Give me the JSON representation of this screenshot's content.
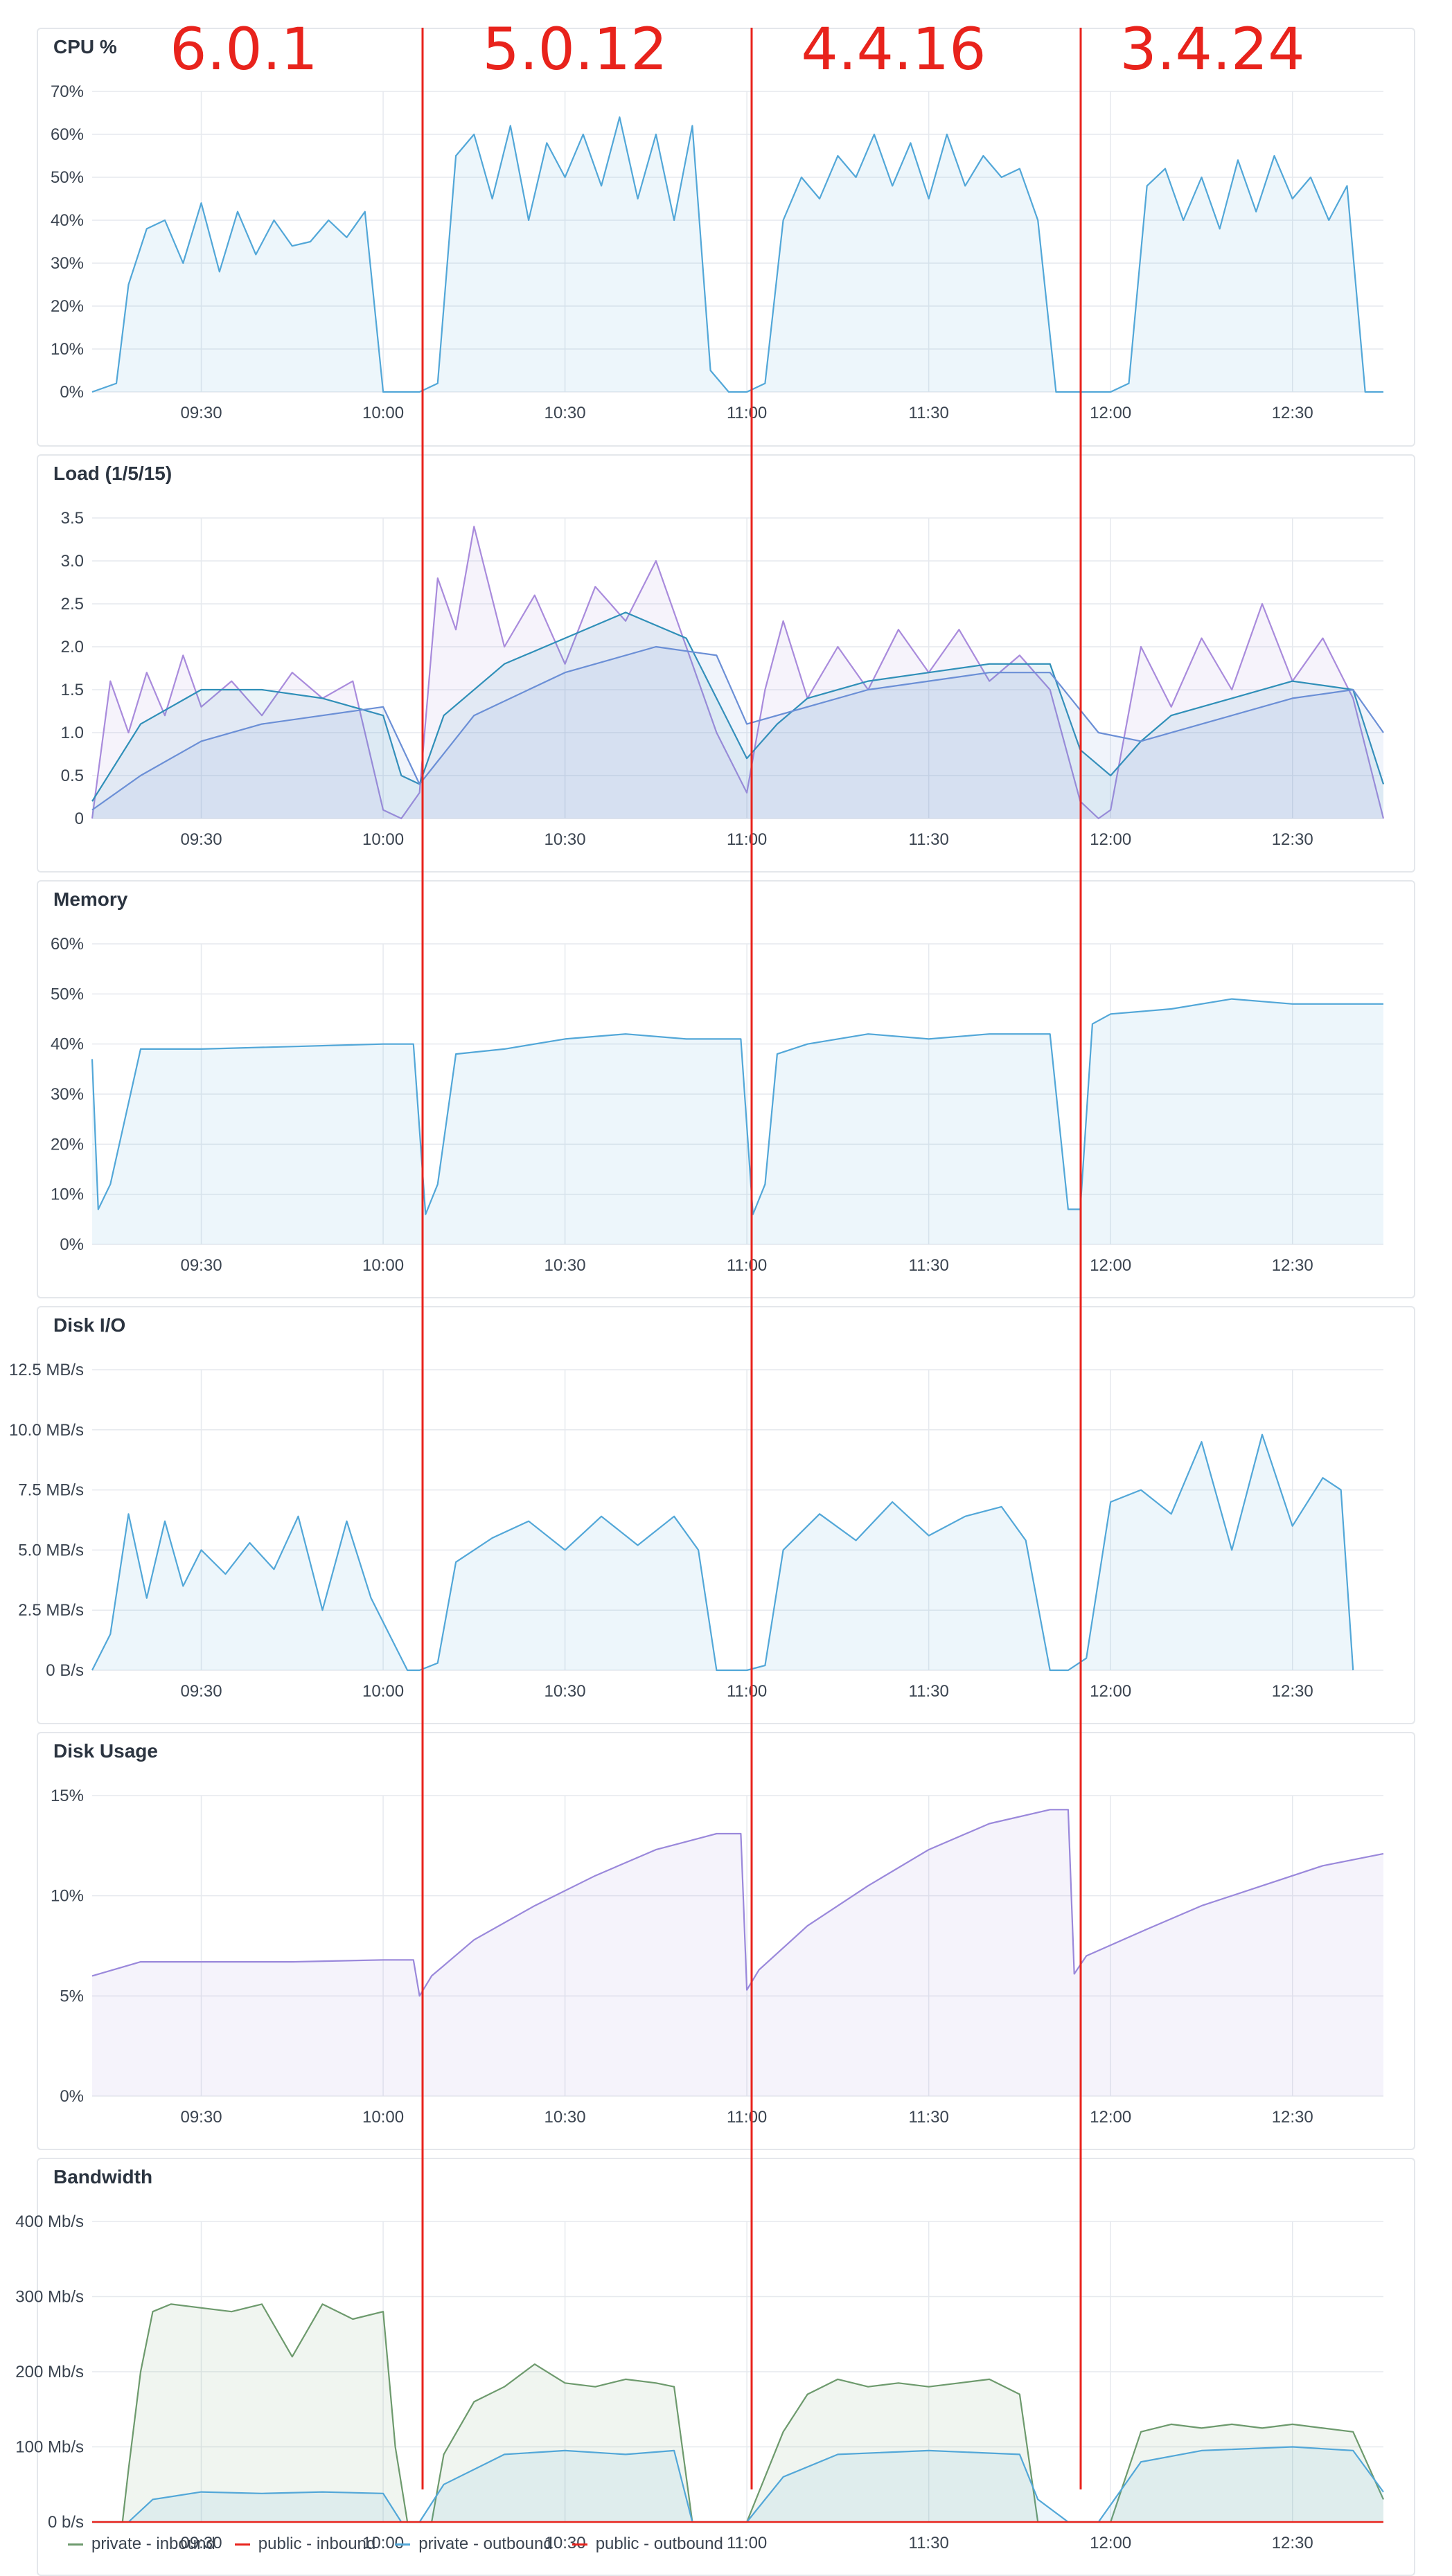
{
  "versions": [
    "6.0.1",
    "5.0.12",
    "4.4.16",
    "3.4.24"
  ],
  "colors": {
    "cpu": "#52a7d8",
    "memory": "#52a7d8",
    "disk_io": "#52a7d8",
    "disk_usage": "#9a88db",
    "load_1": "#a98bdc",
    "load_5": "#2f8fb8",
    "load_15": "#6b8fd6",
    "private_inbound": "#6d9a6d",
    "public_inbound": "#e8231c",
    "private_outbound": "#52a7d8",
    "public_outbound": "#e8231c",
    "version_marker": "#e8231c"
  },
  "legend": [
    {
      "label": "private - inbound",
      "color": "#6d9a6d"
    },
    {
      "label": "public - inbound",
      "color": "#e8231c"
    },
    {
      "label": "private - outbound",
      "color": "#52a7d8"
    },
    {
      "label": "public - outbound",
      "color": "#e8231c"
    }
  ],
  "chart_data": [
    {
      "type": "line",
      "title": "CPU %",
      "x_ticks": [
        "09:30",
        "10:00",
        "10:30",
        "11:00",
        "11:30",
        "12:00",
        "12:30"
      ],
      "xlim": [
        "09:12",
        "12:45"
      ],
      "y_ticks": [
        "0%",
        "10%",
        "20%",
        "30%",
        "40%",
        "50%",
        "60%",
        "70%"
      ],
      "ylim": [
        0,
        70
      ],
      "series": [
        {
          "name": "CPU %",
          "x": [
            "09:12",
            "09:16",
            "09:18",
            "09:21",
            "09:24",
            "09:27",
            "09:30",
            "09:33",
            "09:36",
            "09:39",
            "09:42",
            "09:45",
            "09:48",
            "09:51",
            "09:54",
            "09:57",
            "10:00",
            "10:06",
            "10:09",
            "10:12",
            "10:15",
            "10:18",
            "10:21",
            "10:24",
            "10:27",
            "10:30",
            "10:33",
            "10:36",
            "10:39",
            "10:42",
            "10:45",
            "10:48",
            "10:51",
            "10:54",
            "10:57",
            "11:00",
            "11:03",
            "11:06",
            "11:09",
            "11:12",
            "11:15",
            "11:18",
            "11:21",
            "11:24",
            "11:27",
            "11:30",
            "11:33",
            "11:36",
            "11:39",
            "11:42",
            "11:45",
            "11:48",
            "11:51",
            "11:54",
            "11:57",
            "12:00",
            "12:03",
            "12:06",
            "12:09",
            "12:12",
            "12:15",
            "12:18",
            "12:21",
            "12:24",
            "12:27",
            "12:30",
            "12:33",
            "12:36",
            "12:39",
            "12:42",
            "12:45"
          ],
          "values": [
            0,
            2,
            25,
            38,
            40,
            30,
            44,
            28,
            42,
            32,
            40,
            34,
            35,
            40,
            36,
            42,
            0,
            0,
            2,
            55,
            60,
            45,
            62,
            40,
            58,
            50,
            60,
            48,
            64,
            45,
            60,
            40,
            62,
            5,
            0,
            0,
            2,
            40,
            50,
            45,
            55,
            50,
            60,
            48,
            58,
            45,
            60,
            48,
            55,
            50,
            52,
            40,
            0,
            0,
            0,
            0,
            2,
            48,
            52,
            40,
            50,
            38,
            54,
            42,
            55,
            45,
            50,
            40,
            48,
            0,
            0
          ]
        }
      ]
    },
    {
      "type": "area",
      "title": "Load (1/5/15)",
      "x_ticks": [
        "09:30",
        "10:00",
        "10:30",
        "11:00",
        "11:30",
        "12:00",
        "12:30"
      ],
      "xlim": [
        "09:12",
        "12:45"
      ],
      "y_ticks": [
        "0",
        "0.5",
        "1.0",
        "1.5",
        "2.0",
        "2.5",
        "3.0",
        "3.5"
      ],
      "ylim": [
        0,
        3.5
      ],
      "series": [
        {
          "name": "1",
          "x": [
            "09:12",
            "09:15",
            "09:18",
            "09:21",
            "09:24",
            "09:27",
            "09:30",
            "09:35",
            "09:40",
            "09:45",
            "09:50",
            "09:55",
            "10:00",
            "10:03",
            "10:06",
            "10:09",
            "10:12",
            "10:15",
            "10:20",
            "10:25",
            "10:30",
            "10:35",
            "10:40",
            "10:45",
            "10:50",
            "10:55",
            "11:00",
            "11:03",
            "11:06",
            "11:10",
            "11:15",
            "11:20",
            "11:25",
            "11:30",
            "11:35",
            "11:40",
            "11:45",
            "11:50",
            "11:55",
            "11:58",
            "12:00",
            "12:05",
            "12:10",
            "12:15",
            "12:20",
            "12:25",
            "12:30",
            "12:35",
            "12:40",
            "12:45"
          ],
          "values": [
            0,
            1.6,
            1.0,
            1.7,
            1.2,
            1.9,
            1.3,
            1.6,
            1.2,
            1.7,
            1.4,
            1.6,
            0.1,
            0,
            0.3,
            2.8,
            2.2,
            3.4,
            2.0,
            2.6,
            1.8,
            2.7,
            2.3,
            3.0,
            2.0,
            1.0,
            0.3,
            1.5,
            2.3,
            1.4,
            2.0,
            1.5,
            2.2,
            1.7,
            2.2,
            1.6,
            1.9,
            1.5,
            0.2,
            0,
            0.1,
            2.0,
            1.3,
            2.1,
            1.5,
            2.5,
            1.6,
            2.1,
            1.4,
            0
          ]
        },
        {
          "name": "5",
          "x": [
            "09:12",
            "09:20",
            "09:30",
            "09:40",
            "09:50",
            "10:00",
            "10:03",
            "10:06",
            "10:10",
            "10:20",
            "10:30",
            "10:40",
            "10:50",
            "11:00",
            "11:05",
            "11:10",
            "11:20",
            "11:30",
            "11:40",
            "11:50",
            "11:55",
            "12:00",
            "12:05",
            "12:10",
            "12:20",
            "12:30",
            "12:40",
            "12:45"
          ],
          "values": [
            0.2,
            1.1,
            1.5,
            1.5,
            1.4,
            1.2,
            0.5,
            0.4,
            1.2,
            1.8,
            2.1,
            2.4,
            2.1,
            0.7,
            1.1,
            1.4,
            1.6,
            1.7,
            1.8,
            1.8,
            0.8,
            0.5,
            0.9,
            1.2,
            1.4,
            1.6,
            1.5,
            0.4
          ]
        },
        {
          "name": "15",
          "x": [
            "09:12",
            "09:20",
            "09:30",
            "09:40",
            "09:50",
            "10:00",
            "10:06",
            "10:15",
            "10:30",
            "10:45",
            "10:55",
            "11:00",
            "11:10",
            "11:20",
            "11:30",
            "11:40",
            "11:50",
            "11:58",
            "12:05",
            "12:15",
            "12:30",
            "12:40",
            "12:45"
          ],
          "values": [
            0.1,
            0.5,
            0.9,
            1.1,
            1.2,
            1.3,
            0.4,
            1.2,
            1.7,
            2.0,
            1.9,
            1.1,
            1.3,
            1.5,
            1.6,
            1.7,
            1.7,
            1.0,
            0.9,
            1.1,
            1.4,
            1.5,
            1.0
          ]
        }
      ]
    },
    {
      "type": "area",
      "title": "Memory",
      "x_ticks": [
        "09:30",
        "10:00",
        "10:30",
        "11:00",
        "11:30",
        "12:00",
        "12:30"
      ],
      "xlim": [
        "09:12",
        "12:45"
      ],
      "y_ticks": [
        "0%",
        "10%",
        "20%",
        "30%",
        "40%",
        "50%",
        "60%"
      ],
      "ylim": [
        0,
        60
      ],
      "series": [
        {
          "name": "Memory",
          "x": [
            "09:12",
            "09:13",
            "09:15",
            "09:20",
            "09:30",
            "09:45",
            "10:00",
            "10:05",
            "10:07",
            "10:09",
            "10:12",
            "10:20",
            "10:30",
            "10:40",
            "10:50",
            "10:59",
            "11:01",
            "11:03",
            "11:05",
            "11:10",
            "11:20",
            "11:30",
            "11:40",
            "11:50",
            "11:53",
            "11:55",
            "11:57",
            "12:00",
            "12:10",
            "12:20",
            "12:30",
            "12:40",
            "12:45"
          ],
          "values": [
            37,
            7,
            12,
            39,
            39,
            39.5,
            40,
            40,
            6,
            12,
            38,
            39,
            41,
            42,
            41,
            41,
            6,
            12,
            38,
            40,
            42,
            41,
            42,
            42,
            7,
            7,
            44,
            46,
            47,
            49,
            48,
            48,
            48
          ]
        }
      ]
    },
    {
      "type": "area",
      "title": "Disk I/O",
      "x_ticks": [
        "09:30",
        "10:00",
        "10:30",
        "11:00",
        "11:30",
        "12:00",
        "12:30"
      ],
      "xlim": [
        "09:12",
        "12:45"
      ],
      "y_ticks": [
        "0 B/s",
        "2.5 MB/s",
        "5.0 MB/s",
        "7.5 MB/s",
        "10.0 MB/s",
        "12.5 MB/s"
      ],
      "ylim": [
        0,
        12.5
      ],
      "series": [
        {
          "name": "Disk I/O",
          "x": [
            "09:12",
            "09:15",
            "09:18",
            "09:21",
            "09:24",
            "09:27",
            "09:30",
            "09:34",
            "09:38",
            "09:42",
            "09:46",
            "09:50",
            "09:54",
            "09:58",
            "10:01",
            "10:04",
            "10:06",
            "10:09",
            "10:12",
            "10:18",
            "10:24",
            "10:30",
            "10:36",
            "10:42",
            "10:48",
            "10:52",
            "10:55",
            "11:00",
            "11:03",
            "11:06",
            "11:12",
            "11:18",
            "11:24",
            "11:30",
            "11:36",
            "11:42",
            "11:46",
            "11:50",
            "11:53",
            "11:56",
            "12:00",
            "12:05",
            "12:10",
            "12:15",
            "12:20",
            "12:25",
            "12:30",
            "12:35",
            "12:38",
            "12:40"
          ],
          "values": [
            0,
            1.5,
            6.5,
            3.0,
            6.2,
            3.5,
            5.0,
            4.0,
            5.3,
            4.2,
            6.4,
            2.5,
            6.2,
            3.0,
            1.5,
            0,
            0,
            0.3,
            4.5,
            5.5,
            6.2,
            5.0,
            6.4,
            5.2,
            6.4,
            5.0,
            0,
            0,
            0.2,
            5.0,
            6.5,
            5.4,
            7.0,
            5.6,
            6.4,
            6.8,
            5.4,
            0,
            0,
            0.5,
            7.0,
            7.5,
            6.5,
            9.5,
            5.0,
            9.8,
            6.0,
            8.0,
            7.5,
            0
          ]
        }
      ]
    },
    {
      "type": "area",
      "title": "Disk Usage",
      "x_ticks": [
        "09:30",
        "10:00",
        "10:30",
        "11:00",
        "11:30",
        "12:00",
        "12:30"
      ],
      "xlim": [
        "09:12",
        "12:45"
      ],
      "y_ticks": [
        "0%",
        "5%",
        "10%",
        "15%"
      ],
      "ylim": [
        0,
        15
      ],
      "series": [
        {
          "name": "Disk Usage",
          "x": [
            "09:12",
            "09:20",
            "09:30",
            "09:45",
            "10:00",
            "10:05",
            "10:06",
            "10:08",
            "10:15",
            "10:25",
            "10:35",
            "10:45",
            "10:55",
            "10:59",
            "11:00",
            "11:02",
            "11:10",
            "11:20",
            "11:30",
            "11:40",
            "11:50",
            "11:53",
            "11:54",
            "11:56",
            "12:05",
            "12:15",
            "12:25",
            "12:35",
            "12:45"
          ],
          "values": [
            6.0,
            6.7,
            6.7,
            6.7,
            6.8,
            6.8,
            5.0,
            6.0,
            7.8,
            9.5,
            11.0,
            12.3,
            13.1,
            13.1,
            5.3,
            6.3,
            8.5,
            10.5,
            12.3,
            13.6,
            14.3,
            14.3,
            6.1,
            7.0,
            8.2,
            9.5,
            10.5,
            11.5,
            12.1
          ]
        }
      ]
    },
    {
      "type": "area",
      "title": "Bandwidth",
      "x_ticks": [
        "09:30",
        "10:00",
        "10:30",
        "11:00",
        "11:30",
        "12:00",
        "12:30"
      ],
      "xlim": [
        "09:12",
        "12:45"
      ],
      "y_ticks": [
        "0 b/s",
        "100 Mb/s",
        "200 Mb/s",
        "300 Mb/s",
        "400 Mb/s"
      ],
      "ylim": [
        0,
        400
      ],
      "series": [
        {
          "name": "private - inbound",
          "x": [
            "09:12",
            "09:17",
            "09:18",
            "09:20",
            "09:22",
            "09:25",
            "09:30",
            "09:35",
            "09:40",
            "09:45",
            "09:50",
            "09:55",
            "10:00",
            "10:02",
            "10:04",
            "10:06",
            "10:08",
            "10:10",
            "10:15",
            "10:20",
            "10:25",
            "10:30",
            "10:35",
            "10:40",
            "10:45",
            "10:48",
            "10:51",
            "10:56",
            "10:58",
            "11:00",
            "11:06",
            "11:10",
            "11:15",
            "11:20",
            "11:25",
            "11:30",
            "11:35",
            "11:40",
            "11:45",
            "11:48",
            "11:52",
            "11:55",
            "12:00",
            "12:05",
            "12:10",
            "12:15",
            "12:20",
            "12:25",
            "12:30",
            "12:35",
            "12:40",
            "12:45"
          ],
          "values": [
            0,
            0,
            70,
            200,
            280,
            290,
            285,
            280,
            290,
            220,
            290,
            270,
            280,
            100,
            0,
            0,
            0,
            90,
            160,
            180,
            210,
            185,
            180,
            190,
            185,
            180,
            0,
            0,
            0,
            0,
            120,
            170,
            190,
            180,
            185,
            180,
            185,
            190,
            170,
            0,
            0,
            0,
            0,
            120,
            130,
            125,
            130,
            125,
            130,
            125,
            120,
            30
          ]
        },
        {
          "name": "public - inbound",
          "x": [
            "09:12",
            "12:45"
          ],
          "values": [
            0,
            0
          ]
        },
        {
          "name": "private - outbound",
          "x": [
            "09:12",
            "09:18",
            "09:22",
            "09:30",
            "09:40",
            "09:50",
            "10:00",
            "10:03",
            "10:06",
            "10:10",
            "10:20",
            "10:30",
            "10:40",
            "10:48",
            "10:51",
            "10:56",
            "11:00",
            "11:06",
            "11:15",
            "11:30",
            "11:45",
            "11:48",
            "11:53",
            "11:58",
            "12:05",
            "12:15",
            "12:30",
            "12:40",
            "12:45"
          ],
          "values": [
            0,
            0,
            30,
            40,
            38,
            40,
            38,
            0,
            0,
            50,
            90,
            95,
            90,
            95,
            0,
            0,
            0,
            60,
            90,
            95,
            90,
            30,
            0,
            0,
            80,
            95,
            100,
            95,
            40
          ]
        },
        {
          "name": "public - outbound",
          "x": [
            "09:12",
            "12:45"
          ],
          "values": [
            0,
            0
          ]
        }
      ]
    }
  ]
}
